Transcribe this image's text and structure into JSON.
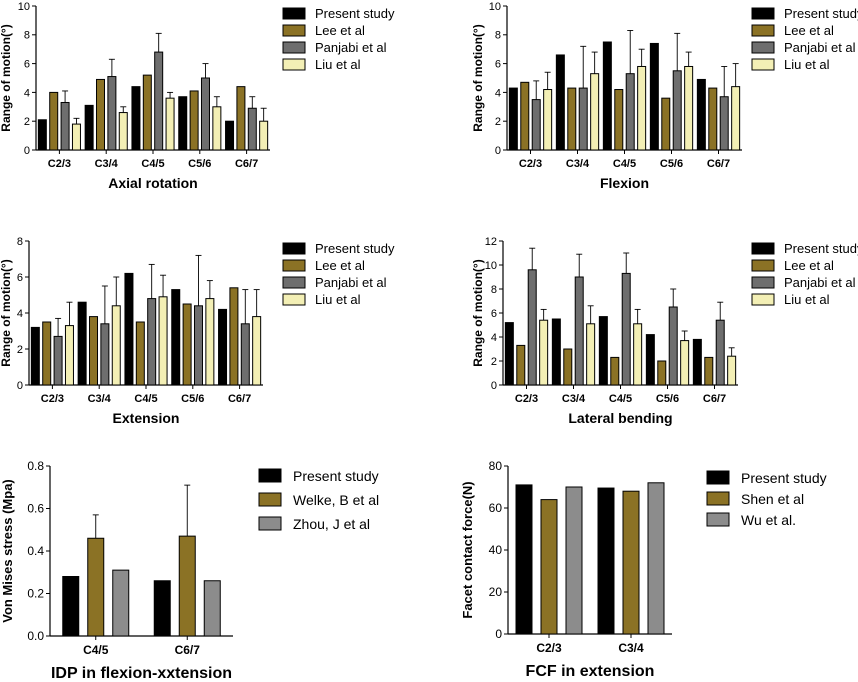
{
  "chart_data": [
    {
      "type": "bar",
      "title": "Axial rotation",
      "ylabel": "Range of motion(°)",
      "categories": [
        "C2/3",
        "C3/4",
        "C4/5",
        "C5/6",
        "C6/7"
      ],
      "ylim": [
        0,
        10
      ],
      "yticks": [
        0,
        2,
        4,
        6,
        8,
        10
      ],
      "series": [
        {
          "name": "Present study",
          "color": "#000000",
          "values": [
            2.1,
            3.1,
            4.4,
            3.7,
            2.0
          ]
        },
        {
          "name": "Lee et al",
          "color": "#8B7225",
          "values": [
            4.0,
            4.9,
            5.2,
            4.1,
            4.4
          ]
        },
        {
          "name": "Panjabi et al",
          "color": "#6E6E6E",
          "values": [
            3.3,
            5.1,
            6.8,
            5.0,
            2.9
          ],
          "errors": [
            0.8,
            1.2,
            1.3,
            1.0,
            0.8
          ]
        },
        {
          "name": "Liu et al",
          "color": "#F3EFB5",
          "values": [
            1.8,
            2.6,
            3.6,
            3.0,
            2.0
          ],
          "errors": [
            0.4,
            0.4,
            0.4,
            0.7,
            0.9
          ]
        }
      ]
    },
    {
      "type": "bar",
      "title": "Flexion",
      "ylabel": "Range of motion(°)",
      "categories": [
        "C2/3",
        "C3/4",
        "C4/5",
        "C5/6",
        "C6/7"
      ],
      "ylim": [
        0,
        10
      ],
      "yticks": [
        0,
        2,
        4,
        6,
        8,
        10
      ],
      "series": [
        {
          "name": "Present study",
          "color": "#000000",
          "values": [
            4.3,
            6.6,
            7.5,
            7.4,
            4.9
          ]
        },
        {
          "name": "Lee et al",
          "color": "#8B7225",
          "values": [
            4.7,
            4.3,
            4.2,
            3.6,
            4.3
          ]
        },
        {
          "name": "Panjabi et al",
          "color": "#6E6E6E",
          "values": [
            3.5,
            4.3,
            5.3,
            5.5,
            3.7
          ],
          "errors": [
            1.3,
            2.9,
            3.0,
            2.6,
            2.1
          ]
        },
        {
          "name": "Liu et al",
          "color": "#F3EFB5",
          "values": [
            4.2,
            5.3,
            5.8,
            5.8,
            4.4
          ],
          "errors": [
            1.2,
            1.5,
            1.2,
            1.0,
            1.6
          ]
        }
      ]
    },
    {
      "type": "bar",
      "title": "Extension",
      "ylabel": "Range of motion(°)",
      "categories": [
        "C2/3",
        "C3/4",
        "C4/5",
        "C5/6",
        "C6/7"
      ],
      "ylim": [
        0,
        8
      ],
      "yticks": [
        0,
        2,
        4,
        6,
        8
      ],
      "series": [
        {
          "name": "Present study",
          "color": "#000000",
          "values": [
            3.2,
            4.6,
            6.2,
            5.3,
            4.2
          ]
        },
        {
          "name": "Lee et al",
          "color": "#8B7225",
          "values": [
            3.5,
            3.8,
            3.5,
            4.5,
            5.4
          ]
        },
        {
          "name": "Panjabi et al",
          "color": "#6E6E6E",
          "values": [
            2.7,
            3.4,
            4.8,
            4.4,
            3.4
          ],
          "errors": [
            1.0,
            2.1,
            1.9,
            2.8,
            1.9
          ]
        },
        {
          "name": "Liu et al",
          "color": "#F3EFB5",
          "values": [
            3.3,
            4.4,
            4.9,
            4.8,
            3.8
          ],
          "errors": [
            1.3,
            1.6,
            1.2,
            1.0,
            1.5
          ]
        }
      ]
    },
    {
      "type": "bar",
      "title": "Lateral bending",
      "ylabel": "Range of motion(°)",
      "categories": [
        "C2/3",
        "C3/4",
        "C4/5",
        "C5/6",
        "C6/7"
      ],
      "ylim": [
        0,
        12
      ],
      "yticks": [
        0,
        2,
        4,
        6,
        8,
        10,
        12
      ],
      "series": [
        {
          "name": "Present study",
          "color": "#000000",
          "values": [
            5.2,
            5.5,
            5.7,
            4.2,
            3.8
          ]
        },
        {
          "name": "Lee et al",
          "color": "#8B7225",
          "values": [
            3.3,
            3.0,
            2.3,
            2.0,
            2.3
          ]
        },
        {
          "name": "Panjabi et al",
          "color": "#6E6E6E",
          "values": [
            9.6,
            9.0,
            9.3,
            6.5,
            5.4
          ],
          "errors": [
            1.8,
            1.9,
            1.7,
            1.5,
            1.5
          ]
        },
        {
          "name": "Liu et al",
          "color": "#F3EFB5",
          "values": [
            5.4,
            5.1,
            5.1,
            3.7,
            2.4
          ],
          "errors": [
            0.9,
            1.5,
            1.2,
            0.8,
            0.7
          ]
        }
      ]
    },
    {
      "type": "bar",
      "title": "IDP in flexion-xxtension",
      "ylabel": "Von Mises stress (Mpa)",
      "categories": [
        "C4/5",
        "C6/7"
      ],
      "ylim": [
        0,
        0.8
      ],
      "yticks": [
        "0.0",
        "0.2",
        "0.4",
        "0.6",
        "0.8"
      ],
      "series": [
        {
          "name": "Present study",
          "color": "#000000",
          "values": [
            0.28,
            0.26
          ]
        },
        {
          "name": "Welke, B et al",
          "color": "#8B7225",
          "values": [
            0.46,
            0.47
          ],
          "errors": [
            0.11,
            0.24
          ]
        },
        {
          "name": "Zhou, J et al",
          "color": "#8C8C8C",
          "values": [
            0.31,
            0.26
          ]
        }
      ]
    },
    {
      "type": "bar",
      "title": "FCF in extension",
      "ylabel": "Facet contact force(N)",
      "categories": [
        "C2/3",
        "C3/4"
      ],
      "ylim": [
        0,
        80
      ],
      "yticks": [
        0,
        20,
        40,
        60,
        80
      ],
      "series": [
        {
          "name": "Present study",
          "color": "#000000",
          "values": [
            71,
            69.5
          ]
        },
        {
          "name": "Shen et al",
          "color": "#8B7225",
          "values": [
            64,
            68
          ]
        },
        {
          "name": "Wu et al.",
          "color": "#8C8C8C",
          "values": [
            70,
            72
          ]
        }
      ]
    }
  ]
}
